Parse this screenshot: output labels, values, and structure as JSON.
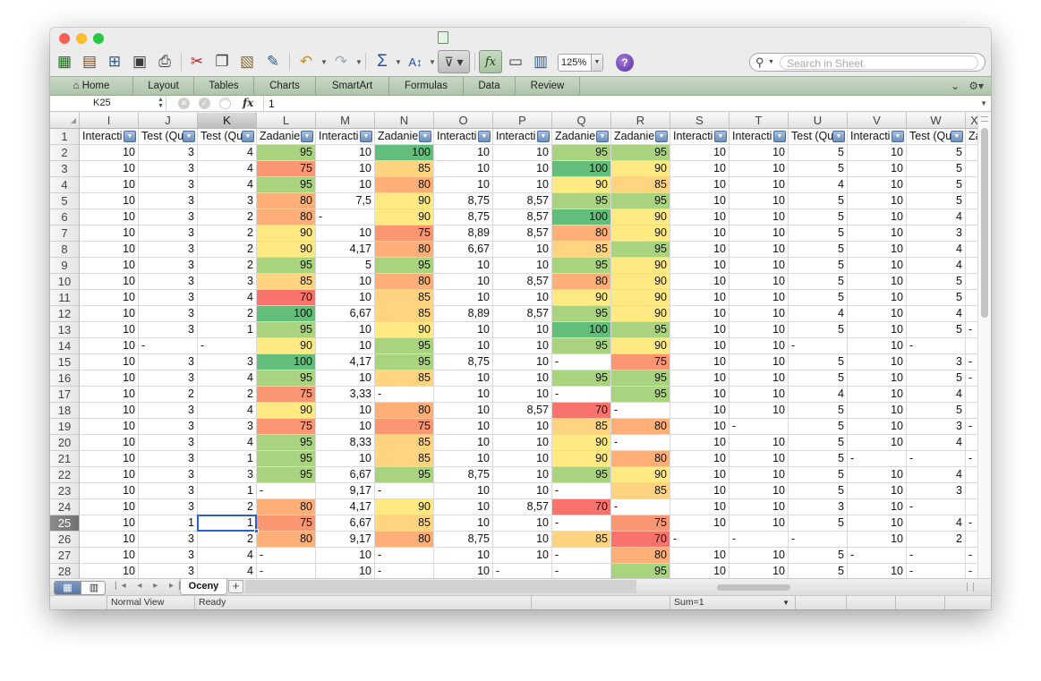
{
  "window": {
    "traffic_lights": [
      {
        "name": "close-button",
        "color": "#fc5f57"
      },
      {
        "name": "minimize-button",
        "color": "#fdbc2e"
      },
      {
        "name": "zoom-button",
        "color": "#27c840"
      }
    ]
  },
  "toolbar": {
    "zoom_value": "125%",
    "search_placeholder": "Search in Sheet",
    "icons": [
      "new-icon",
      "gallery-icon",
      "open-icon",
      "save-icon",
      "print-icon",
      "cut-icon",
      "copy-icon",
      "paste-icon",
      "format-painter-icon",
      "undo-icon",
      "redo-icon",
      "autosum-icon",
      "sort-icon",
      "filter-icon",
      "formula-builder-icon",
      "show-toolbox-icon",
      "media-browser-icon",
      "help-icon"
    ]
  },
  "ribbon": {
    "tabs": [
      "Home",
      "Layout",
      "Tables",
      "Charts",
      "SmartArt",
      "Formulas",
      "Data",
      "Review"
    ]
  },
  "formula_bar": {
    "name_box": "K25",
    "fx_label": "fx",
    "value": "1"
  },
  "grid": {
    "columns": [
      "I",
      "J",
      "K",
      "L",
      "M",
      "N",
      "O",
      "P",
      "Q",
      "R",
      "S",
      "T",
      "U",
      "V",
      "W"
    ],
    "partial_column": "X",
    "selected_column": "K",
    "header_row": [
      "Interacti",
      "Test (Qu",
      "Test (Qu",
      "Zadanie",
      "Interacti",
      "Zadanie",
      "Interacti",
      "Interacti",
      "Zadanie",
      "Zadanie",
      "Interacti",
      "Interacti",
      "Test (Qu",
      "Interacti",
      "Test (Qu"
    ],
    "partial_header": "Za",
    "selected_row": 25,
    "rows": [
      {
        "n": "2",
        "cells": [
          "10",
          "3",
          "4",
          "95",
          "10",
          "100",
          "10",
          "10",
          "95",
          "95",
          "10",
          "10",
          "5",
          "10",
          "5"
        ],
        "x": ""
      },
      {
        "n": "3",
        "cells": [
          "10",
          "3",
          "4",
          "75",
          "10",
          "85",
          "10",
          "10",
          "100",
          "90",
          "10",
          "10",
          "5",
          "10",
          "5"
        ],
        "x": ""
      },
      {
        "n": "4",
        "cells": [
          "10",
          "3",
          "4",
          "95",
          "10",
          "80",
          "10",
          "10",
          "90",
          "85",
          "10",
          "10",
          "4",
          "10",
          "5"
        ],
        "x": ""
      },
      {
        "n": "5",
        "cells": [
          "10",
          "3",
          "3",
          "80",
          "7,5",
          "90",
          "8,75",
          "8,57",
          "95",
          "95",
          "10",
          "10",
          "5",
          "10",
          "5"
        ],
        "x": ""
      },
      {
        "n": "6",
        "cells": [
          "10",
          "3",
          "2",
          "80",
          "-",
          "90",
          "8,75",
          "8,57",
          "100",
          "90",
          "10",
          "10",
          "5",
          "10",
          "4"
        ],
        "x": ""
      },
      {
        "n": "7",
        "cells": [
          "10",
          "3",
          "2",
          "90",
          "10",
          "75",
          "8,89",
          "8,57",
          "80",
          "90",
          "10",
          "10",
          "5",
          "10",
          "3"
        ],
        "x": ""
      },
      {
        "n": "8",
        "cells": [
          "10",
          "3",
          "2",
          "90",
          "4,17",
          "80",
          "6,67",
          "10",
          "85",
          "95",
          "10",
          "10",
          "5",
          "10",
          "4"
        ],
        "x": ""
      },
      {
        "n": "9",
        "cells": [
          "10",
          "3",
          "2",
          "95",
          "5",
          "95",
          "10",
          "10",
          "95",
          "90",
          "10",
          "10",
          "5",
          "10",
          "4"
        ],
        "x": ""
      },
      {
        "n": "10",
        "cells": [
          "10",
          "3",
          "3",
          "85",
          "10",
          "80",
          "10",
          "8,57",
          "80",
          "90",
          "10",
          "10",
          "5",
          "10",
          "5"
        ],
        "x": ""
      },
      {
        "n": "11",
        "cells": [
          "10",
          "3",
          "4",
          "70",
          "10",
          "85",
          "10",
          "10",
          "90",
          "90",
          "10",
          "10",
          "5",
          "10",
          "5"
        ],
        "x": ""
      },
      {
        "n": "12",
        "cells": [
          "10",
          "3",
          "2",
          "100",
          "6,67",
          "85",
          "8,89",
          "8,57",
          "95",
          "90",
          "10",
          "10",
          "4",
          "10",
          "4"
        ],
        "x": ""
      },
      {
        "n": "13",
        "cells": [
          "10",
          "3",
          "1",
          "95",
          "10",
          "90",
          "10",
          "10",
          "100",
          "95",
          "10",
          "10",
          "5",
          "10",
          "5"
        ],
        "x": "-"
      },
      {
        "n": "14",
        "cells": [
          "10",
          "-",
          "-",
          "90",
          "10",
          "95",
          "10",
          "10",
          "95",
          "90",
          "10",
          "10",
          "-",
          "10",
          "-"
        ],
        "x": ""
      },
      {
        "n": "15",
        "cells": [
          "10",
          "3",
          "3",
          "100",
          "4,17",
          "95",
          "8,75",
          "10",
          "-",
          "75",
          "10",
          "10",
          "5",
          "10",
          "3"
        ],
        "x": "-"
      },
      {
        "n": "16",
        "cells": [
          "10",
          "3",
          "4",
          "95",
          "10",
          "85",
          "10",
          "10",
          "95",
          "95",
          "10",
          "10",
          "5",
          "10",
          "5"
        ],
        "x": "-"
      },
      {
        "n": "17",
        "cells": [
          "10",
          "2",
          "2",
          "75",
          "3,33",
          "-",
          "10",
          "10",
          "-",
          "95",
          "10",
          "10",
          "4",
          "10",
          "4"
        ],
        "x": ""
      },
      {
        "n": "18",
        "cells": [
          "10",
          "3",
          "4",
          "90",
          "10",
          "80",
          "10",
          "8,57",
          "70",
          "-",
          "10",
          "10",
          "5",
          "10",
          "5"
        ],
        "x": ""
      },
      {
        "n": "19",
        "cells": [
          "10",
          "3",
          "3",
          "75",
          "10",
          "75",
          "10",
          "10",
          "85",
          "80",
          "10",
          "-",
          "5",
          "10",
          "3"
        ],
        "x": "-"
      },
      {
        "n": "20",
        "cells": [
          "10",
          "3",
          "4",
          "95",
          "8,33",
          "85",
          "10",
          "10",
          "90",
          "-",
          "10",
          "10",
          "5",
          "10",
          "4"
        ],
        "x": ""
      },
      {
        "n": "21",
        "cells": [
          "10",
          "3",
          "1",
          "95",
          "10",
          "85",
          "10",
          "10",
          "90",
          "80",
          "10",
          "10",
          "5",
          "-",
          "-"
        ],
        "x": "-"
      },
      {
        "n": "22",
        "cells": [
          "10",
          "3",
          "3",
          "95",
          "6,67",
          "95",
          "8,75",
          "10",
          "95",
          "90",
          "10",
          "10",
          "5",
          "10",
          "4"
        ],
        "x": ""
      },
      {
        "n": "23",
        "cells": [
          "10",
          "3",
          "1",
          "-",
          "9,17",
          "-",
          "10",
          "10",
          "-",
          "85",
          "10",
          "10",
          "5",
          "10",
          "3"
        ],
        "x": ""
      },
      {
        "n": "24",
        "cells": [
          "10",
          "3",
          "2",
          "80",
          "4,17",
          "90",
          "10",
          "8,57",
          "70",
          "-",
          "10",
          "10",
          "3",
          "10",
          "-"
        ],
        "x": ""
      },
      {
        "n": "25",
        "cells": [
          "10",
          "1",
          "1",
          "75",
          "6,67",
          "85",
          "10",
          "10",
          "-",
          "75",
          "10",
          "10",
          "5",
          "10",
          "4"
        ],
        "x": "-"
      },
      {
        "n": "26",
        "cells": [
          "10",
          "3",
          "2",
          "80",
          "9,17",
          "80",
          "8,75",
          "10",
          "85",
          "70",
          "-",
          "-",
          "-",
          "10",
          "2"
        ],
        "x": ""
      },
      {
        "n": "27",
        "cells": [
          "10",
          "3",
          "4",
          "-",
          "10",
          "-",
          "10",
          "10",
          "-",
          "80",
          "10",
          "10",
          "5",
          "-",
          "-"
        ],
        "x": "-"
      },
      {
        "n": "28",
        "cells": [
          "10",
          "3",
          "4",
          "-",
          "10",
          "-",
          "10",
          "-",
          "-",
          "95",
          "10",
          "10",
          "5",
          "10",
          "-"
        ],
        "x": "-"
      }
    ]
  },
  "sheet_tabs": [
    "Oceny"
  ],
  "add_sheet_label": "+",
  "status_bar": {
    "view": "Normal View",
    "state": "Ready",
    "sum": "Sum=1"
  },
  "colors": {
    "heat_100": "#63be7b",
    "heat_95": "#aad37f",
    "heat_90": "#ffe983",
    "heat_85": "#fed481",
    "heat_80": "#fdaf77",
    "heat_75": "#fb9672",
    "heat_70": "#f8736b",
    "selection": "#2a5fd1",
    "ribbon": "#b9cdb5"
  }
}
